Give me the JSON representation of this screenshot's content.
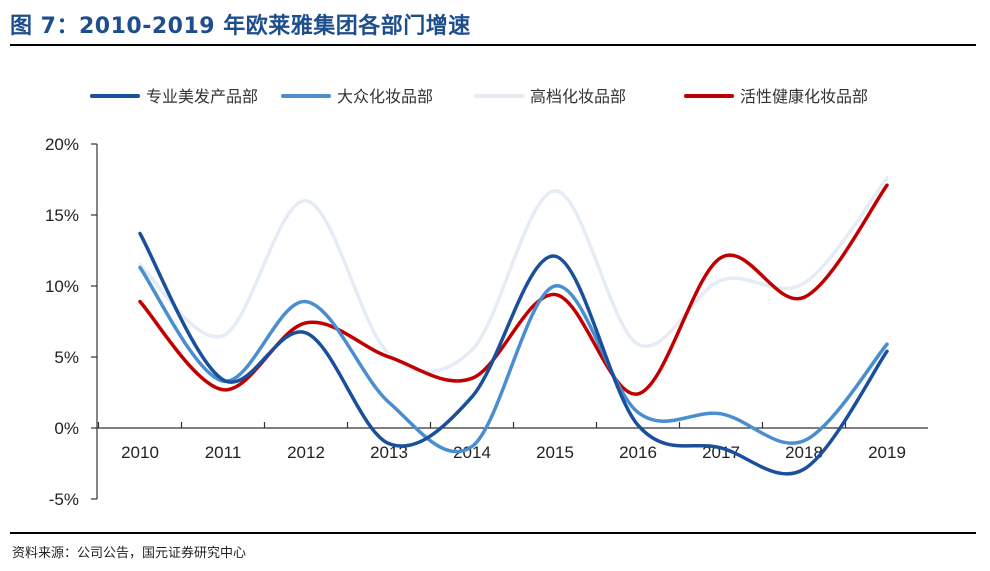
{
  "title": "图 7：2010-2019 年欧莱雅集团各部门增速",
  "source": "资料来源：公司公告，国元证券研究中心",
  "chart_data": {
    "type": "line",
    "title": "",
    "xlabel": "",
    "ylabel": "",
    "categories": [
      "2010",
      "2011",
      "2012",
      "2013",
      "2014",
      "2015",
      "2016",
      "2017",
      "2018",
      "2019"
    ],
    "ylim": [
      -5,
      20
    ],
    "yticks": [
      -5,
      0,
      5,
      10,
      15,
      20
    ],
    "ytick_labels": [
      "-5%",
      "0%",
      "5%",
      "10%",
      "15%",
      "20%"
    ],
    "smooth": true,
    "grid": false,
    "legend": "top",
    "series": [
      {
        "name": "专业美发产品部",
        "color": "#1a4f9c",
        "values": [
          13.7,
          3.4,
          6.7,
          -1.1,
          2.2,
          12.1,
          0.2,
          -1.4,
          -2.9,
          5.4
        ]
      },
      {
        "name": "大众化妆品部",
        "color": "#4a8ed0",
        "values": [
          11.3,
          3.3,
          8.9,
          1.8,
          -1.3,
          10.0,
          1.1,
          1.0,
          -0.9,
          5.9
        ]
      },
      {
        "name": "高档化妆品部",
        "color": "#e5ecf6",
        "values": [
          11.5,
          6.5,
          16.0,
          5.2,
          5.5,
          16.7,
          5.9,
          10.4,
          10.2,
          17.6
        ]
      },
      {
        "name": "活性健康化妆品部",
        "color": "#c00000",
        "values": [
          8.9,
          2.7,
          7.4,
          5.0,
          3.5,
          9.4,
          2.4,
          12.0,
          9.2,
          17.1
        ]
      }
    ]
  }
}
